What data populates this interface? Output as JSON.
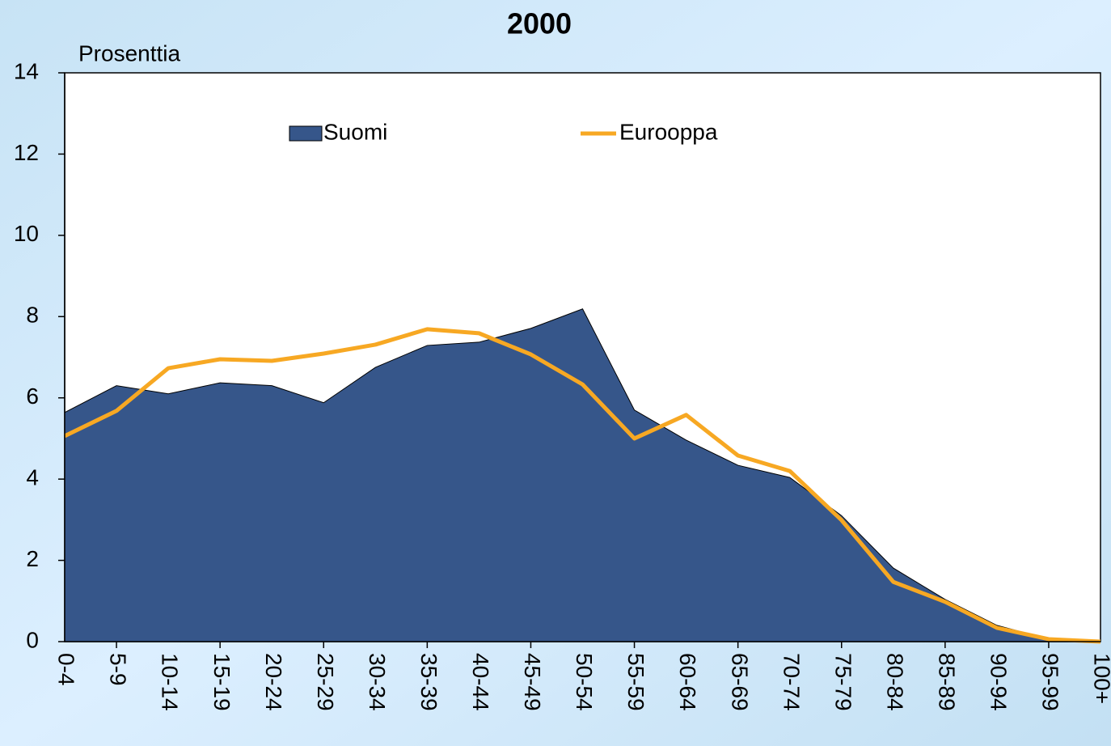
{
  "chart_data": {
    "type": "area_line",
    "title": "2000",
    "y_label": "Prosenttia",
    "categories": [
      "0-4",
      "5-9",
      "10-14",
      "15-19",
      "20-24",
      "25-29",
      "30-34",
      "35-39",
      "40-44",
      "45-49",
      "50-54",
      "55-59",
      "60-64",
      "65-69",
      "70-74",
      "75-79",
      "80-84",
      "85-89",
      "90-94",
      "95-99",
      "100+"
    ],
    "series": [
      {
        "name": "Suomi",
        "color": "#36568a",
        "kind": "area",
        "values": [
          5.64,
          6.3,
          6.1,
          6.37,
          6.3,
          5.88,
          6.75,
          7.29,
          7.37,
          7.71,
          8.19,
          5.7,
          4.96,
          4.34,
          4.04,
          3.1,
          1.81,
          1.04,
          0.4,
          0.06,
          0.0
        ]
      },
      {
        "name": "Eurooppa",
        "color": "#f7a823",
        "kind": "line",
        "values": [
          5.06,
          5.68,
          6.73,
          6.95,
          6.91,
          7.09,
          7.31,
          7.69,
          7.59,
          7.07,
          6.33,
          5.0,
          5.58,
          4.58,
          4.2,
          2.99,
          1.47,
          0.98,
          0.34,
          0.06,
          0.0
        ]
      }
    ],
    "ylim": [
      0,
      14
    ],
    "yticks": [
      0,
      2,
      4,
      6,
      8,
      10,
      12,
      14
    ]
  }
}
